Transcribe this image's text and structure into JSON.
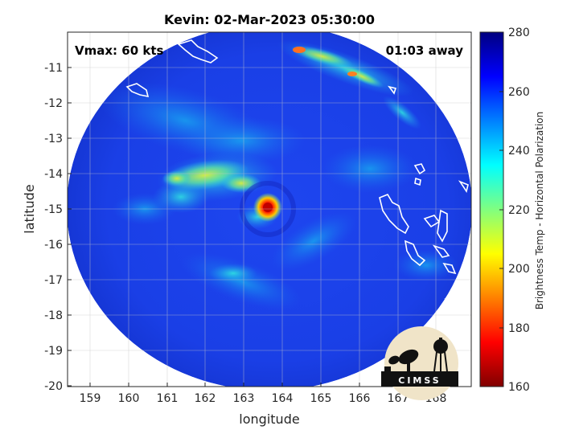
{
  "title": "Kevin: 02-Mar-2023 05:30:00",
  "vmax_label": "Vmax: 60 kts",
  "time_away_label": "01:03 away",
  "xlabel": "longitude",
  "ylabel": "latitude",
  "x_ticks": [
    "159",
    "160",
    "161",
    "162",
    "163",
    "164",
    "165",
    "166",
    "167",
    "168"
  ],
  "y_ticks": [
    "-11",
    "-12",
    "-13",
    "-14",
    "-15",
    "-16",
    "-17",
    "-18",
    "-19",
    "-20"
  ],
  "colorbar": {
    "label": "Brightness Temp - Horizontal Polarization",
    "ticks": [
      "280",
      "260",
      "240",
      "220",
      "200",
      "180",
      "160"
    ],
    "range": [
      160,
      280
    ],
    "colormap": "jet",
    "colors": [
      "#800000",
      "#ff0000",
      "#ff8000",
      "#ffff00",
      "#80ff80",
      "#00ffff",
      "#0080ff",
      "#0000ff",
      "#000080"
    ]
  },
  "logo": {
    "text": "CIMSS"
  },
  "storm_center": {
    "longitude": 163.5,
    "latitude": -14.95
  }
}
